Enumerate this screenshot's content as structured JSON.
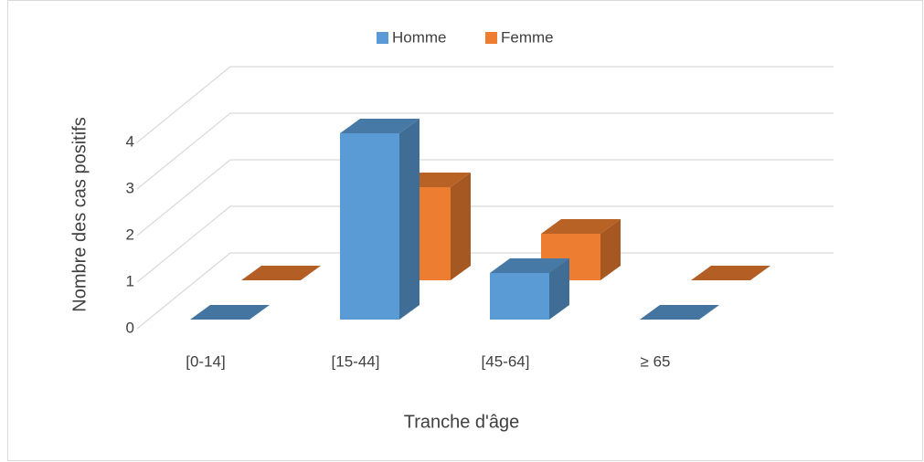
{
  "chart_data": {
    "type": "bar3d",
    "xlabel": "Tranche d'âge",
    "ylabel": "Nombre des cas positifs",
    "categories": [
      "[0-14]",
      "[15-44]",
      "[45-64]",
      "≥ 65"
    ],
    "series": [
      {
        "name": "Homme",
        "color": "#5b9bd5",
        "values": [
          0,
          4,
          1,
          0
        ]
      },
      {
        "name": "Femme",
        "color": "#ed7d31",
        "values": [
          0,
          2,
          1,
          0
        ]
      }
    ],
    "ylim": [
      0,
      4
    ],
    "yticks": [
      0,
      1,
      2,
      3,
      4
    ],
    "grid": true,
    "legend": "top"
  }
}
